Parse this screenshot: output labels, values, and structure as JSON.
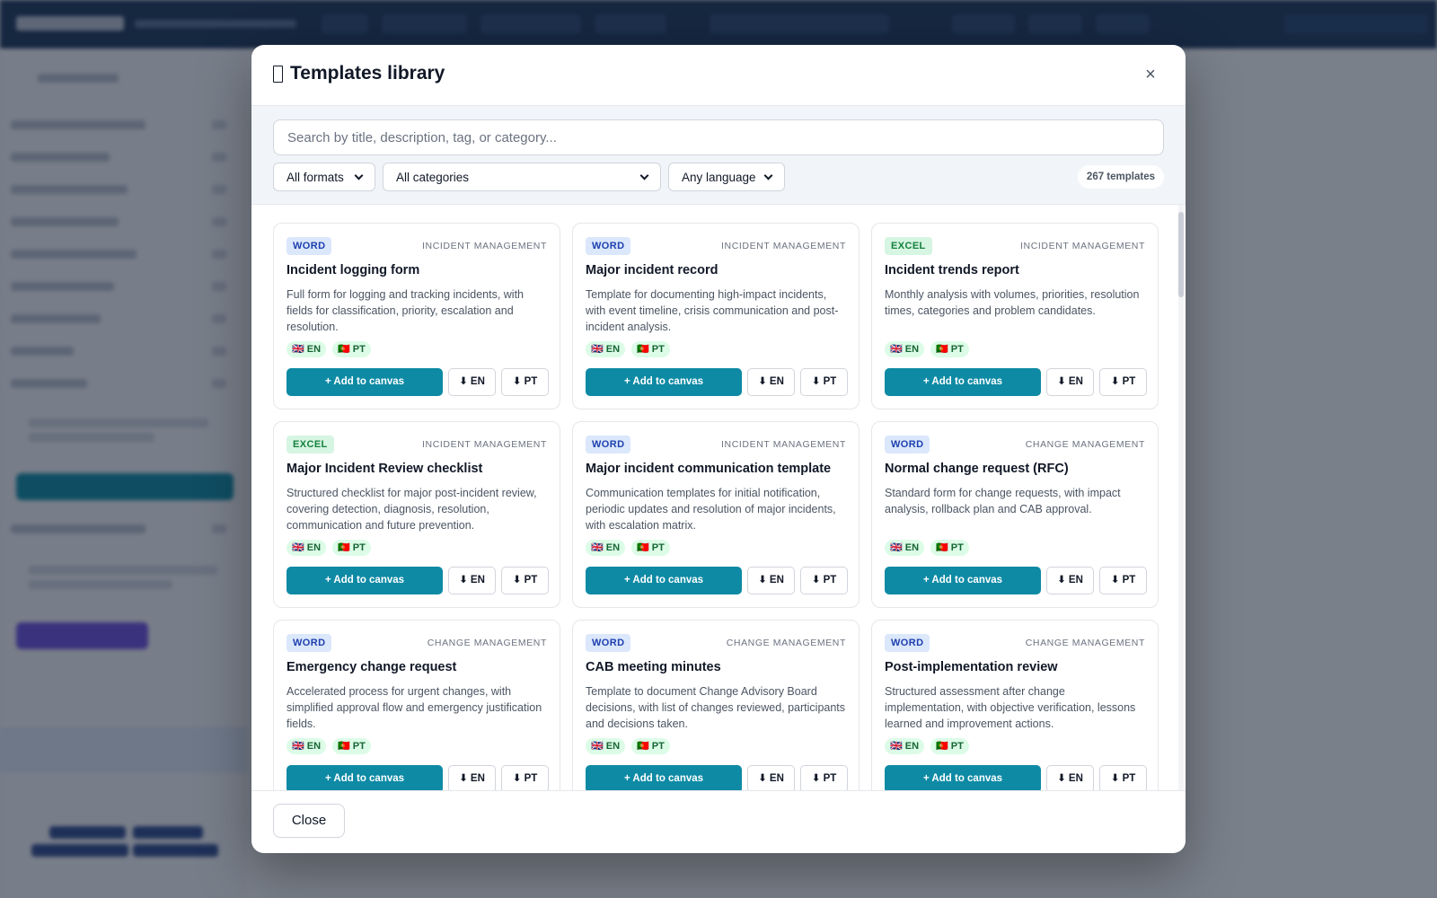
{
  "modal": {
    "title": "Templates library",
    "title_icon": "book-icon",
    "close_icon": "close-icon",
    "close_symbol": "×",
    "search_placeholder": "Search by title, description, tag, or category...",
    "filters": {
      "format": "All formats",
      "category": "All categories",
      "language": "Any language"
    },
    "count": "267 templates",
    "add_label": "+ Add to canvas",
    "footer_close": "Close"
  },
  "colors": {
    "accent": "#0e8aa4",
    "word_badge": "#dbe7fb",
    "excel_badge": "#d6f5e2",
    "lang_badge": "#dcfce7"
  },
  "templates": [
    {
      "format": "WORD",
      "category": "INCIDENT MANAGEMENT",
      "title": "Incident logging form",
      "description": "Full form for logging and tracking incidents, with fields for classification, priority, escalation and resolution.",
      "langs": [
        "🇬🇧 EN",
        "🇵🇹 PT"
      ],
      "downloads": [
        "⬇ EN",
        "⬇ PT"
      ]
    },
    {
      "format": "WORD",
      "category": "INCIDENT MANAGEMENT",
      "title": "Major incident record",
      "description": "Template for documenting high-impact incidents, with event timeline, crisis communication and post-incident analysis.",
      "langs": [
        "🇬🇧 EN",
        "🇵🇹 PT"
      ],
      "downloads": [
        "⬇ EN",
        "⬇ PT"
      ]
    },
    {
      "format": "EXCEL",
      "category": "INCIDENT MANAGEMENT",
      "title": "Incident trends report",
      "description": "Monthly analysis with volumes, priorities, resolution times, categories and problem candidates.",
      "langs": [
        "🇬🇧 EN",
        "🇵🇹 PT"
      ],
      "downloads": [
        "⬇ EN",
        "⬇ PT"
      ]
    },
    {
      "format": "EXCEL",
      "category": "INCIDENT MANAGEMENT",
      "title": "Major Incident Review checklist",
      "description": "Structured checklist for major post-incident review, covering detection, diagnosis, resolution, communication and future prevention.",
      "langs": [
        "🇬🇧 EN",
        "🇵🇹 PT"
      ],
      "downloads": [
        "⬇ EN",
        "⬇ PT"
      ]
    },
    {
      "format": "WORD",
      "category": "INCIDENT MANAGEMENT",
      "title": "Major incident communication template",
      "description": "Communication templates for initial notification, periodic updates and resolution of major incidents, with escalation matrix.",
      "langs": [
        "🇬🇧 EN",
        "🇵🇹 PT"
      ],
      "downloads": [
        "⬇ EN",
        "⬇ PT"
      ]
    },
    {
      "format": "WORD",
      "category": "CHANGE MANAGEMENT",
      "title": "Normal change request (RFC)",
      "description": "Standard form for change requests, with impact analysis, rollback plan and CAB approval.",
      "langs": [
        "🇬🇧 EN",
        "🇵🇹 PT"
      ],
      "downloads": [
        "⬇ EN",
        "⬇ PT"
      ]
    },
    {
      "format": "WORD",
      "category": "CHANGE MANAGEMENT",
      "title": "Emergency change request",
      "description": "Accelerated process for urgent changes, with simplified approval flow and emergency justification fields.",
      "langs": [
        "🇬🇧 EN",
        "🇵🇹 PT"
      ],
      "downloads": [
        "⬇ EN",
        "⬇ PT"
      ]
    },
    {
      "format": "WORD",
      "category": "CHANGE MANAGEMENT",
      "title": "CAB meeting minutes",
      "description": "Template to document Change Advisory Board decisions, with list of changes reviewed, participants and decisions taken.",
      "langs": [
        "🇬🇧 EN",
        "🇵🇹 PT"
      ],
      "downloads": [
        "⬇ EN",
        "⬇ PT"
      ]
    },
    {
      "format": "WORD",
      "category": "CHANGE MANAGEMENT",
      "title": "Post-implementation review",
      "description": "Structured assessment after change implementation, with objective verification, lessons learned and improvement actions.",
      "langs": [
        "🇬🇧 EN",
        "🇵🇹 PT"
      ],
      "downloads": [
        "⬇ EN",
        "⬇ PT"
      ]
    }
  ]
}
